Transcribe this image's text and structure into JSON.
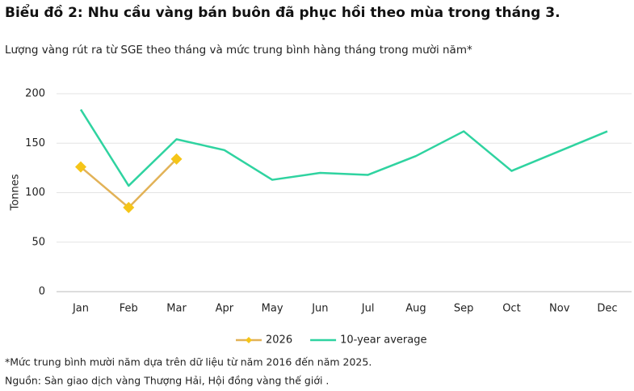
{
  "chart_data": {
    "type": "line",
    "title": "Biểu đồ 2: Nhu cầu vàng bán buôn đã phục hồi theo mùa trong tháng 3.",
    "subtitle": "Lượng vàng rút ra từ SGE theo tháng và mức trung bình hàng tháng trong mười năm*",
    "y_label": "Tonnes",
    "categories": [
      "Jan",
      "Feb",
      "Mar",
      "Apr",
      "May",
      "Jun",
      "Jul",
      "Aug",
      "Sep",
      "Oct",
      "Nov",
      "Dec"
    ],
    "series": [
      {
        "name": "2026",
        "color": "#e2b257",
        "marker_color": "#f5c518",
        "values": [
          126,
          85,
          134,
          null,
          null,
          null,
          null,
          null,
          null,
          null,
          null,
          null
        ]
      },
      {
        "name": "10-year average",
        "color": "#2fd3a0",
        "values": [
          184,
          107,
          154,
          143,
          113,
          120,
          118,
          137,
          162,
          122,
          142,
          162
        ]
      }
    ],
    "ylim": [
      0,
      200
    ],
    "yticks": [
      0,
      50,
      100,
      150,
      200
    ],
    "grid": true,
    "footnote": "*Mức trung bình mười năm dựa trên dữ liệu từ năm 2016 đến năm 2025.",
    "source": "Nguồn: Sàn giao dịch vàng Thượng Hải, Hội đồng vàng thế giới  ."
  }
}
